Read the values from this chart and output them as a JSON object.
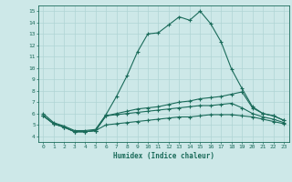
{
  "title": "",
  "xlabel": "Humidex (Indice chaleur)",
  "ylabel": "",
  "background_color": "#cde8e8",
  "line_color": "#1a6b5a",
  "grid_color": "#b0d4d4",
  "xlim": [
    -0.5,
    23.5
  ],
  "ylim": [
    3.5,
    15.5
  ],
  "xticks": [
    0,
    1,
    2,
    3,
    4,
    5,
    6,
    7,
    8,
    9,
    10,
    11,
    12,
    13,
    14,
    15,
    16,
    17,
    18,
    19,
    20,
    21,
    22,
    23
  ],
  "yticks": [
    4,
    5,
    6,
    7,
    8,
    9,
    10,
    11,
    12,
    13,
    14,
    15
  ],
  "series": [
    {
      "x": [
        0,
        1,
        2,
        3,
        4,
        5,
        6,
        7,
        8,
        9,
        10,
        11,
        12,
        13,
        14,
        15,
        16,
        17,
        18,
        19,
        20,
        21,
        22,
        23
      ],
      "y": [
        6.0,
        5.2,
        4.9,
        4.5,
        4.5,
        4.6,
        5.9,
        7.5,
        9.3,
        11.4,
        13.0,
        13.1,
        13.8,
        14.5,
        14.2,
        15.0,
        13.9,
        12.3,
        9.9,
        8.2,
        6.6,
        6.0,
        5.8,
        5.4
      ]
    },
    {
      "x": [
        0,
        1,
        2,
        3,
        4,
        5,
        6,
        7,
        8,
        9,
        10,
        11,
        12,
        13,
        14,
        15,
        16,
        17,
        18,
        19,
        20,
        21,
        22,
        23
      ],
      "y": [
        5.8,
        5.1,
        4.8,
        4.4,
        4.4,
        4.5,
        5.8,
        6.0,
        6.2,
        6.4,
        6.5,
        6.6,
        6.8,
        7.0,
        7.1,
        7.3,
        7.4,
        7.5,
        7.7,
        7.9,
        6.5,
        6.0,
        5.8,
        5.4
      ]
    },
    {
      "x": [
        0,
        1,
        2,
        3,
        4,
        5,
        6,
        7,
        8,
        9,
        10,
        11,
        12,
        13,
        14,
        15,
        16,
        17,
        18,
        19,
        20,
        21,
        22,
        23
      ],
      "y": [
        5.8,
        5.1,
        4.8,
        4.4,
        4.4,
        4.5,
        5.8,
        5.9,
        6.0,
        6.1,
        6.2,
        6.3,
        6.4,
        6.5,
        6.6,
        6.7,
        6.7,
        6.8,
        6.9,
        6.5,
        6.0,
        5.7,
        5.5,
        5.2
      ]
    },
    {
      "x": [
        0,
        1,
        2,
        3,
        4,
        5,
        6,
        7,
        8,
        9,
        10,
        11,
        12,
        13,
        14,
        15,
        16,
        17,
        18,
        19,
        20,
        21,
        22,
        23
      ],
      "y": [
        5.8,
        5.1,
        4.8,
        4.4,
        4.4,
        4.5,
        5.0,
        5.1,
        5.2,
        5.3,
        5.4,
        5.5,
        5.6,
        5.7,
        5.7,
        5.8,
        5.9,
        5.9,
        5.9,
        5.8,
        5.7,
        5.5,
        5.3,
        5.1
      ]
    }
  ]
}
